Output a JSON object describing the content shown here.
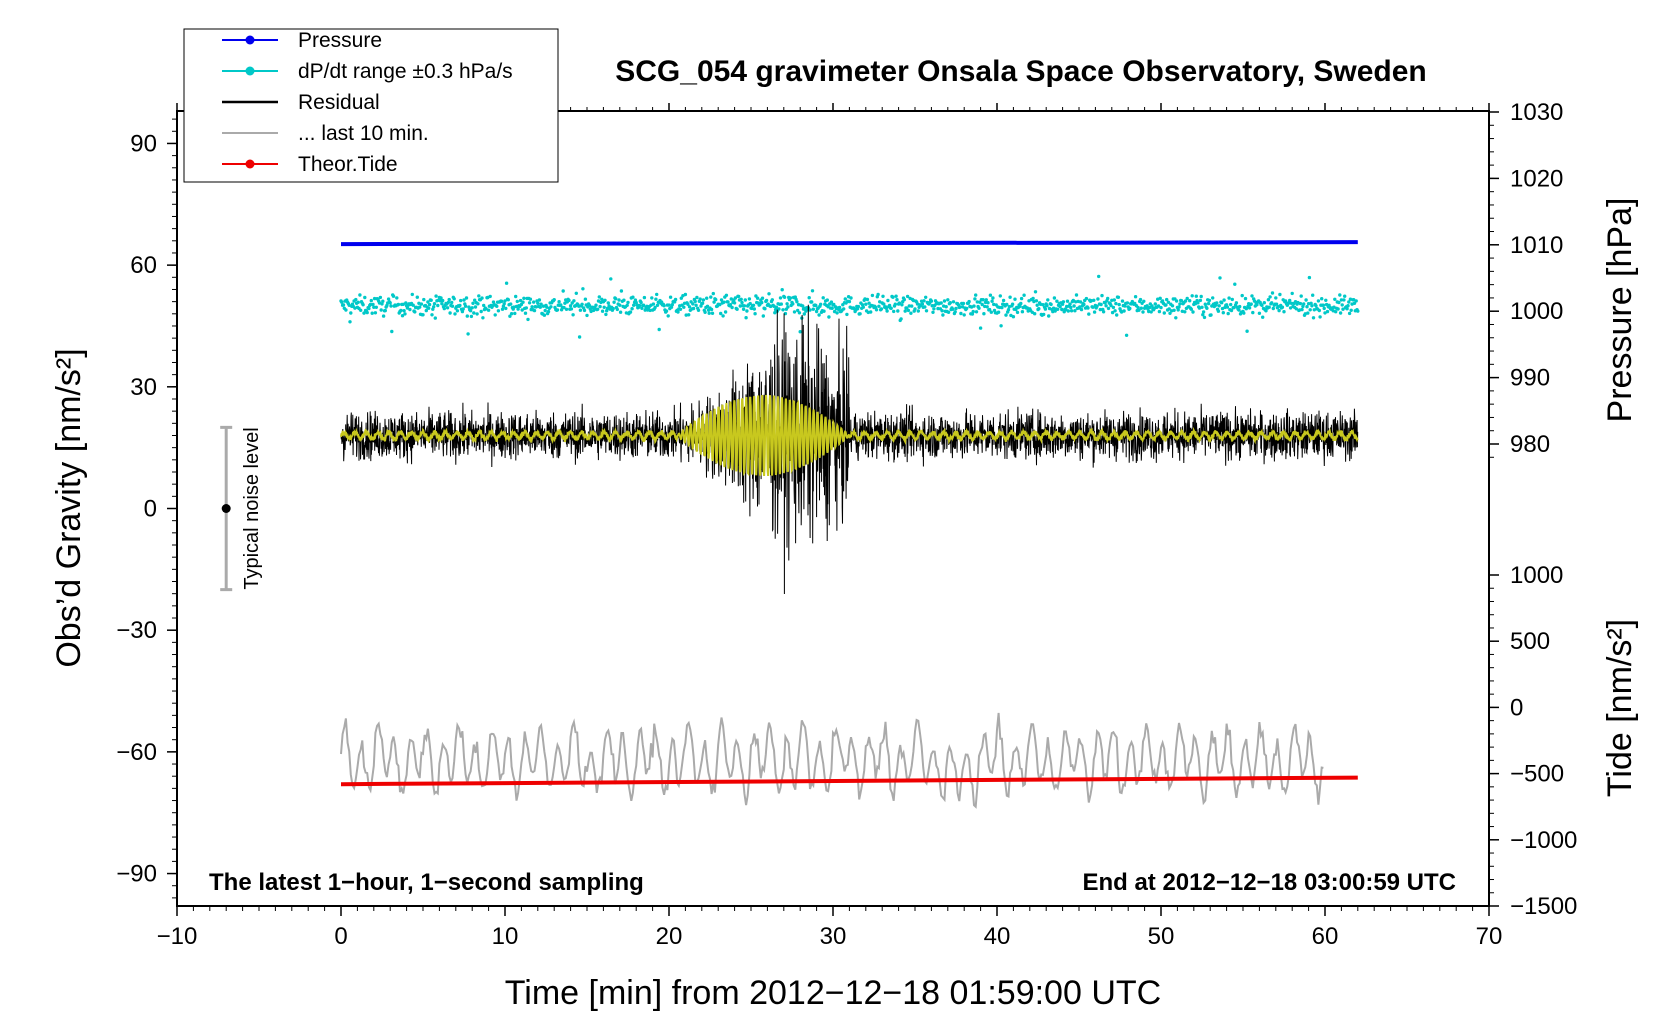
{
  "chart_data": {
    "type": "line",
    "title": "SCG_054 gravimeter Onsala Space Observatory, Sweden",
    "xlabel": "Time [min] from 2012−12−18 01:59:00 UTC",
    "ylabel_left": "Obs’d Gravity [nm/s²]",
    "ylabel_right_pressure": "Pressure [hPa]",
    "ylabel_right_tide": "Tide [nm/s²]",
    "xlim": [
      -10,
      70
    ],
    "ylim": [
      -98,
      98
    ],
    "pressure_axis_range": [
      980,
      1030
    ],
    "tide_axis_range": [
      -1500,
      1000
    ],
    "x_ticks": [
      "−10",
      "0",
      "10",
      "20",
      "30",
      "40",
      "50",
      "60",
      "70"
    ],
    "y_ticks_left": [
      "90",
      "60",
      "30",
      "0",
      "−30",
      "−60",
      "−90"
    ],
    "y_ticks_pressure": [
      "1030",
      "1020",
      "1010",
      "1000",
      "990",
      "980"
    ],
    "y_ticks_tide": [
      "1000",
      "500",
      "0",
      "−500",
      "−1000",
      "−1500"
    ],
    "legend": [
      {
        "label": "Pressure",
        "color": "#0000ee"
      },
      {
        "label": "dP/dt range ±0.3 hPa/s",
        "color": "#00c8c8"
      },
      {
        "label": "Residual",
        "color": "#000000"
      },
      {
        "label": "... last 10 min.",
        "color": "#aaaaaa"
      },
      {
        "label": "Theor.Tide",
        "color": "#ee0000"
      }
    ],
    "annotations": {
      "left": "The latest 1−hour, 1−second sampling",
      "right": "End at 2012−12−18 03:00:59 UTC",
      "noise": "Typical noise level"
    },
    "series": [
      {
        "name": "Pressure",
        "axis": "pressure",
        "color": "#0000ee",
        "x": [
          0,
          62
        ],
        "values": [
          1010.1,
          1010.4
        ]
      },
      {
        "name": "dP/dt range ±0.3 hPa/s",
        "axis": "gravity",
        "color": "#00c8c8",
        "x_range": [
          0,
          62
        ],
        "center": 50,
        "spread": 3
      },
      {
        "name": "Residual",
        "axis": "gravity",
        "color": "#000000",
        "x_range": [
          0,
          62
        ],
        "center": 18,
        "peak_min": [
          27.5,
          28.2
        ],
        "max_value": 55,
        "min_value": -22
      },
      {
        "name": "Residual (smoothed)",
        "axis": "gravity",
        "color": "#c8c81e",
        "x_range": [
          0,
          62
        ],
        "center": 18,
        "burst": [
          20.5,
          31
        ]
      },
      {
        "name": "... last 10 min.",
        "axis": "gravity",
        "color": "#aaaaaa",
        "x_range": [
          0,
          60
        ],
        "center": -60,
        "min_value": -81,
        "max_value": -48
      },
      {
        "name": "Theor.Tide",
        "axis": "tide",
        "color": "#ee0000",
        "x": [
          0,
          62
        ],
        "values": [
          -580,
          -530
        ]
      }
    ],
    "noise_level": {
      "x": -7,
      "center": 0,
      "range": [
        -20,
        20
      ]
    }
  }
}
